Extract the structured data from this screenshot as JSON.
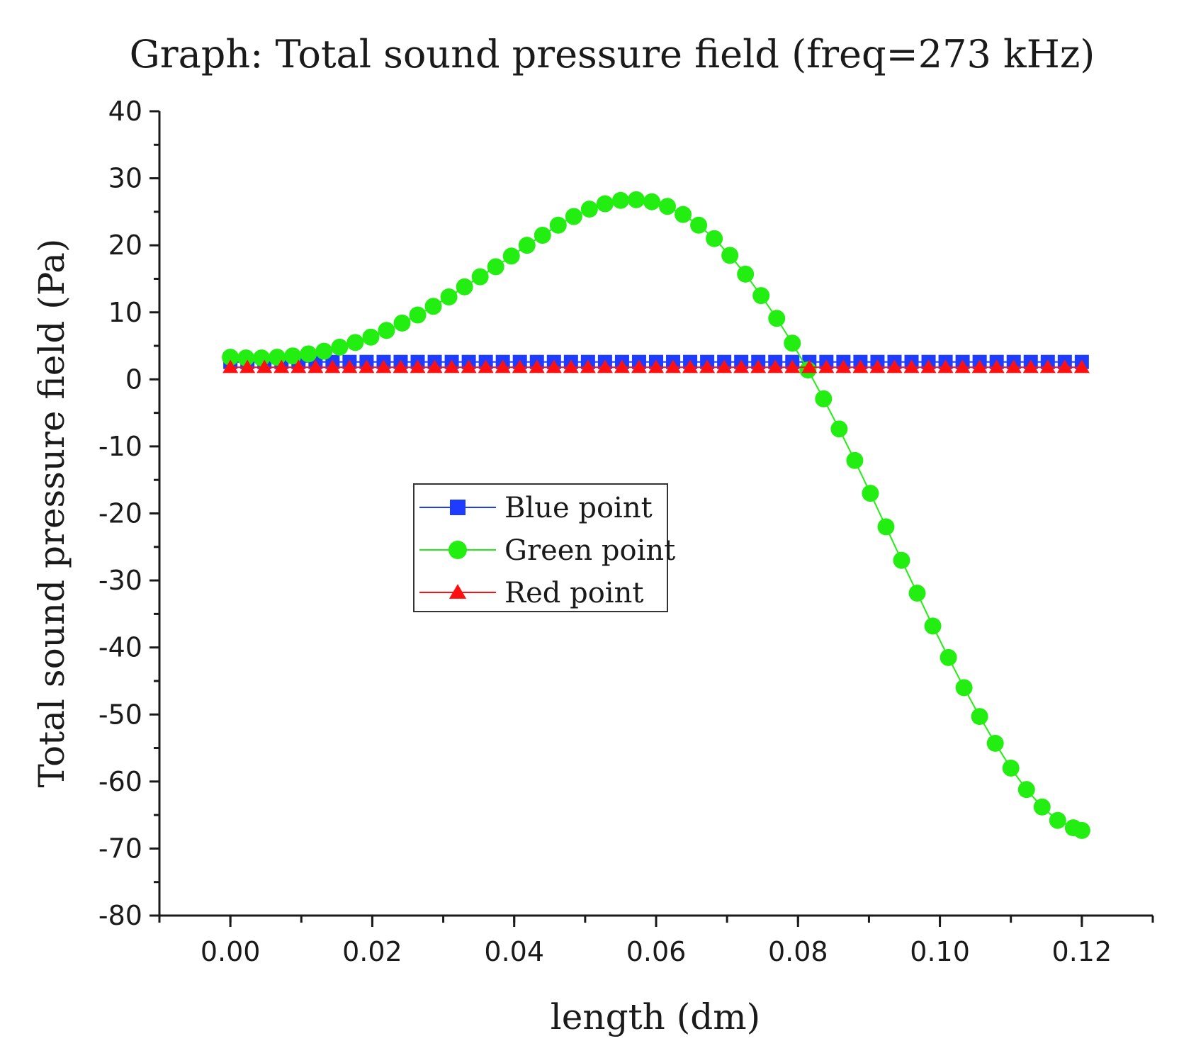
{
  "chart_data": {
    "type": "line",
    "title": "Graph: Total sound pressure field (freq=273 kHz)",
    "xlabel": "length (dm)",
    "ylabel": "Total sound pressure field (Pa)",
    "xlim": [
      -0.01,
      0.13
    ],
    "ylim": [
      -80,
      40
    ],
    "xticks": [
      0.0,
      0.02,
      0.04,
      0.06,
      0.08,
      0.1,
      0.12
    ],
    "xtick_labels": [
      "0.00",
      "0.02",
      "0.04",
      "0.06",
      "0.08",
      "0.10",
      "0.12"
    ],
    "yticks": [
      40,
      30,
      20,
      10,
      0,
      -10,
      -20,
      -30,
      -40,
      -50,
      -60,
      -70,
      -80
    ],
    "ytick_labels": [
      "40",
      "30",
      "20",
      "10",
      "0",
      "-10",
      "-20",
      "-30",
      "-40",
      "-50",
      "-60",
      "-70",
      "-80"
    ],
    "legend_position": "center-left",
    "series": [
      {
        "name": "Blue point",
        "color": "#1e3cff",
        "marker": "square",
        "x": [
          0.0,
          0.0024,
          0.0048,
          0.0072,
          0.0096,
          0.012,
          0.0144,
          0.0168,
          0.0192,
          0.0216,
          0.024,
          0.0264,
          0.0288,
          0.0312,
          0.0336,
          0.036,
          0.0384,
          0.0408,
          0.0432,
          0.0456,
          0.048,
          0.0504,
          0.0528,
          0.0552,
          0.0576,
          0.06,
          0.0624,
          0.0648,
          0.0672,
          0.0696,
          0.072,
          0.0744,
          0.0768,
          0.0792,
          0.0816,
          0.084,
          0.0864,
          0.0888,
          0.0912,
          0.0936,
          0.096,
          0.0984,
          0.1008,
          0.1032,
          0.1056,
          0.108,
          0.1104,
          0.1128,
          0.1152,
          0.1176,
          0.12
        ],
        "y": [
          2.6,
          2.6,
          2.6,
          2.6,
          2.6,
          2.6,
          2.6,
          2.6,
          2.6,
          2.6,
          2.6,
          2.6,
          2.6,
          2.6,
          2.6,
          2.6,
          2.6,
          2.6,
          2.6,
          2.6,
          2.6,
          2.6,
          2.6,
          2.6,
          2.6,
          2.6,
          2.6,
          2.6,
          2.6,
          2.6,
          2.6,
          2.6,
          2.6,
          2.6,
          2.6,
          2.6,
          2.6,
          2.6,
          2.6,
          2.6,
          2.6,
          2.6,
          2.6,
          2.6,
          2.6,
          2.6,
          2.6,
          2.6,
          2.6,
          2.6,
          2.6
        ]
      },
      {
        "name": "Green point",
        "color": "#22ee11",
        "marker": "circle",
        "x": [
          0.0,
          0.0022,
          0.0044,
          0.0066,
          0.0088,
          0.011,
          0.0132,
          0.0154,
          0.0176,
          0.0198,
          0.022,
          0.0242,
          0.0264,
          0.0286,
          0.0308,
          0.033,
          0.0352,
          0.0374,
          0.0396,
          0.0418,
          0.044,
          0.0462,
          0.0484,
          0.0506,
          0.0528,
          0.055,
          0.0572,
          0.0594,
          0.0616,
          0.0638,
          0.066,
          0.0682,
          0.0704,
          0.0726,
          0.0748,
          0.077,
          0.0792,
          0.0814,
          0.0836,
          0.0858,
          0.088,
          0.0902,
          0.0924,
          0.0946,
          0.0968,
          0.099,
          0.1012,
          0.1034,
          0.1056,
          0.1078,
          0.11,
          0.1122,
          0.1144,
          0.1166,
          0.1188,
          0.12
        ],
        "y": [
          3.3,
          3.2,
          3.2,
          3.3,
          3.5,
          3.8,
          4.2,
          4.8,
          5.5,
          6.3,
          7.3,
          8.4,
          9.6,
          10.9,
          12.3,
          13.8,
          15.3,
          16.8,
          18.4,
          20.0,
          21.5,
          23.0,
          24.3,
          25.4,
          26.2,
          26.7,
          26.8,
          26.5,
          25.8,
          24.6,
          23.0,
          21.0,
          18.5,
          15.7,
          12.5,
          9.1,
          5.4,
          1.4,
          -2.9,
          -7.4,
          -12.1,
          -17.0,
          -22.0,
          -27.0,
          -31.9,
          -36.8,
          -41.5,
          -46.0,
          -50.3,
          -54.3,
          -58.0,
          -61.2,
          -63.8,
          -65.8,
          -66.9,
          -67.3
        ]
      },
      {
        "name": "Red point",
        "color": "#ff1010",
        "marker": "triangle",
        "x": [
          0.0,
          0.0024,
          0.0048,
          0.0072,
          0.0096,
          0.012,
          0.0144,
          0.0168,
          0.0192,
          0.0216,
          0.024,
          0.0264,
          0.0288,
          0.0312,
          0.0336,
          0.036,
          0.0384,
          0.0408,
          0.0432,
          0.0456,
          0.048,
          0.0504,
          0.0528,
          0.0552,
          0.0576,
          0.06,
          0.0624,
          0.0648,
          0.0672,
          0.0696,
          0.072,
          0.0744,
          0.0768,
          0.0792,
          0.0816,
          0.084,
          0.0864,
          0.0888,
          0.0912,
          0.0936,
          0.096,
          0.0984,
          0.1008,
          0.1032,
          0.1056,
          0.108,
          0.1104,
          0.1128,
          0.1152,
          0.1176,
          0.12
        ],
        "y": [
          1.8,
          1.8,
          1.8,
          1.8,
          1.8,
          1.8,
          1.8,
          1.8,
          1.8,
          1.8,
          1.8,
          1.8,
          1.8,
          1.8,
          1.8,
          1.8,
          1.8,
          1.8,
          1.8,
          1.8,
          1.8,
          1.8,
          1.8,
          1.8,
          1.8,
          1.8,
          1.8,
          1.8,
          1.8,
          1.8,
          1.8,
          1.8,
          1.8,
          1.8,
          1.8,
          1.8,
          1.8,
          1.8,
          1.8,
          1.8,
          1.8,
          1.8,
          1.8,
          1.8,
          1.8,
          1.8,
          1.8,
          1.8,
          1.8,
          1.8,
          1.8
        ]
      }
    ]
  }
}
